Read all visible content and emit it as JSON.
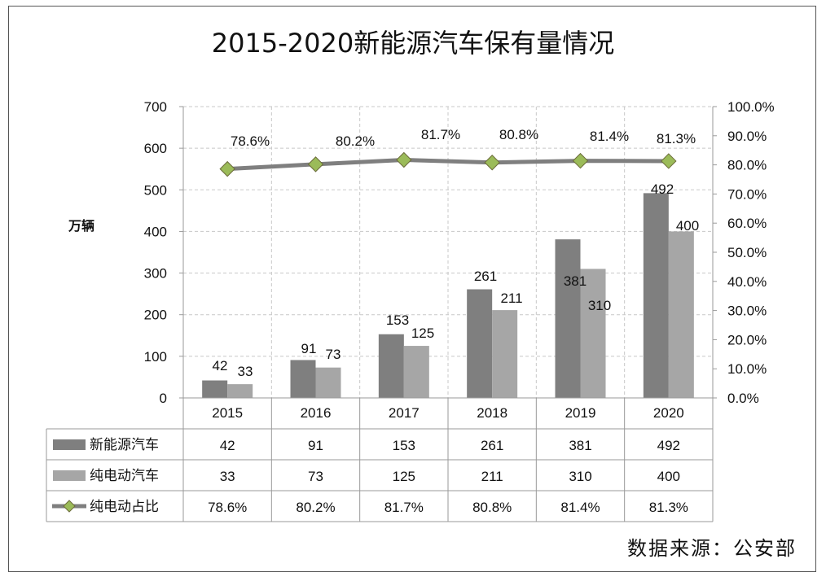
{
  "title": "2015-2020新能源汽车保有量情况",
  "source": "数据来源：公安部",
  "chart_data": {
    "type": "bar",
    "title": "2015-2020新能源汽车保有量情况",
    "categories": [
      "2015",
      "2016",
      "2017",
      "2018",
      "2019",
      "2020"
    ],
    "ylabel": "万辆",
    "ylim": [
      0,
      700
    ],
    "yticks": [
      "0",
      "100",
      "200",
      "300",
      "400",
      "500",
      "600",
      "700"
    ],
    "y2lim": [
      0,
      100
    ],
    "y2ticks": [
      "0.0%",
      "10.0%",
      "20.0%",
      "30.0%",
      "40.0%",
      "50.0%",
      "60.0%",
      "70.0%",
      "80.0%",
      "90.0%",
      "100.0%"
    ],
    "grid": true,
    "data_table": true,
    "series": [
      {
        "name": "新能源汽车",
        "type": "bar",
        "color": "#7f7f7f",
        "values": [
          42,
          91,
          153,
          261,
          381,
          492
        ],
        "labels": [
          "42",
          "91",
          "153",
          "261",
          "381",
          "492"
        ]
      },
      {
        "name": "纯电动汽车",
        "type": "bar",
        "color": "#a6a6a6",
        "values": [
          33,
          73,
          125,
          211,
          310,
          400
        ],
        "labels": [
          "33",
          "73",
          "125",
          "211",
          "310",
          "400"
        ]
      },
      {
        "name": "纯电动占比",
        "type": "line",
        "axis": "right",
        "color": "#7f7f7f",
        "marker": "diamond",
        "marker_color": "#9bbb59",
        "values": [
          78.6,
          80.2,
          81.7,
          80.8,
          81.4,
          81.3
        ],
        "labels": [
          "78.6%",
          "80.2%",
          "81.7%",
          "80.8%",
          "81.4%",
          "81.3%"
        ]
      }
    ]
  }
}
